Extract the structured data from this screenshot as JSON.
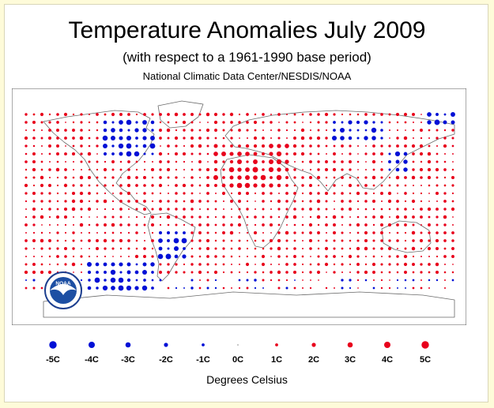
{
  "header": {
    "title": "Temperature Anomalies July 2009",
    "subtitle": "(with respect to a 1961-1990 base period)",
    "source": "National Climatic Data Center/NESDIS/NOAA"
  },
  "logo": {
    "text": "NOAA"
  },
  "legend": {
    "items": [
      {
        "label": "-5C",
        "value": -5
      },
      {
        "label": "-4C",
        "value": -4
      },
      {
        "label": "-3C",
        "value": -3
      },
      {
        "label": "-2C",
        "value": -2
      },
      {
        "label": "-1C",
        "value": -1
      },
      {
        "label": "0C",
        "value": 0
      },
      {
        "label": "1C",
        "value": 1
      },
      {
        "label": "2C",
        "value": 2
      },
      {
        "label": "3C",
        "value": 3
      },
      {
        "label": "4C",
        "value": 4
      },
      {
        "label": "5C",
        "value": 5
      }
    ],
    "units": "Degrees Celsius"
  },
  "colors": {
    "warm": "#e8001c",
    "cool": "#0010d6",
    "neutral": "#888888",
    "coast": "#6a6a6a",
    "background": "#fefbd9"
  }
}
